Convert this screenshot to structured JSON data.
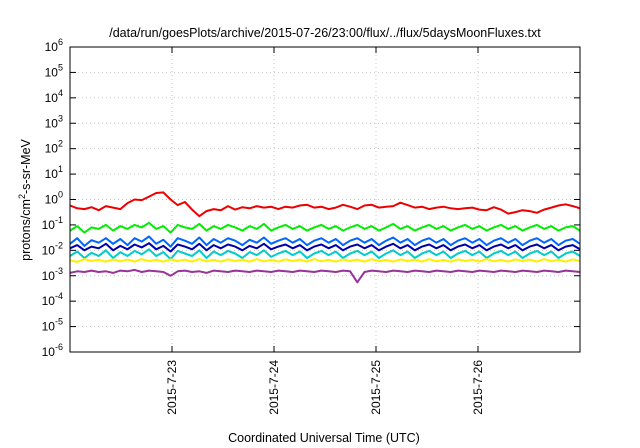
{
  "chart_data": {
    "type": "line",
    "title": "/data/run/goesPlots/archive/2015-07-26/23:00/flux/../flux/5daysMoonFluxes.txt",
    "xlabel": "Coordinated Universal Time (UTC)",
    "ylabel": "protons/cm²-s-sr-MeV",
    "ylabel_parts": {
      "before": "protons/cm",
      "sup": "2",
      "after": "-s-sr-MeV"
    },
    "y_scale": "log",
    "ylim": [
      1e-06,
      1000000.0
    ],
    "xlim": [
      "2015-07-22 00:00",
      "2015-07-27 00:00"
    ],
    "grid": true,
    "legend": "none",
    "y_ticks": [
      {
        "base": "10",
        "exp": "-6",
        "value": 1e-06
      },
      {
        "base": "10",
        "exp": "-5",
        "value": 1e-05
      },
      {
        "base": "10",
        "exp": "-4",
        "value": 0.0001
      },
      {
        "base": "10",
        "exp": "-3",
        "value": 0.001
      },
      {
        "base": "10",
        "exp": "-2",
        "value": 0.01
      },
      {
        "base": "10",
        "exp": "-1",
        "value": 0.1
      },
      {
        "base": "10",
        "exp": "0",
        "value": 1.0
      },
      {
        "base": "10",
        "exp": "1",
        "value": 10.0
      },
      {
        "base": "10",
        "exp": "2",
        "value": 100.0
      },
      {
        "base": "10",
        "exp": "3",
        "value": 1000.0
      },
      {
        "base": "10",
        "exp": "4",
        "value": 10000.0
      },
      {
        "base": "10",
        "exp": "5",
        "value": 100000.0
      },
      {
        "base": "10",
        "exp": "6",
        "value": 1000000.0
      }
    ],
    "x_ticks": [
      {
        "label": "2015-7-23",
        "value": "2015-07-23 00:00"
      },
      {
        "label": "2015-7-24",
        "value": "2015-07-24 00:00"
      },
      {
        "label": "2015-7-25",
        "value": "2015-07-25 00:00"
      },
      {
        "label": "2015-7-26",
        "value": "2015-07-26 00:00"
      }
    ],
    "series_sampling": "12 samples per day starting 2015-07-22 00:00",
    "series": [
      {
        "color": "#ee0000",
        "values": [
          0.58,
          0.45,
          0.42,
          0.5,
          0.38,
          0.55,
          0.48,
          0.42,
          0.72,
          1.0,
          0.95,
          1.3,
          1.8,
          1.9,
          1.0,
          0.6,
          0.8,
          0.4,
          0.22,
          0.35,
          0.42,
          0.38,
          0.55,
          0.4,
          0.5,
          0.45,
          0.55,
          0.48,
          0.52,
          0.42,
          0.52,
          0.48,
          0.58,
          0.62,
          0.48,
          0.52,
          0.42,
          0.48,
          0.62,
          0.52,
          0.42,
          0.58,
          0.62,
          0.48,
          0.52,
          0.55,
          0.75,
          0.6,
          0.48,
          0.52,
          0.42,
          0.48,
          0.52,
          0.45,
          0.42,
          0.45,
          0.48,
          0.4,
          0.38,
          0.5,
          0.4,
          0.28,
          0.32,
          0.38,
          0.35,
          0.3,
          0.4,
          0.48,
          0.58,
          0.65,
          0.55,
          0.45
        ]
      },
      {
        "color": "#00ee00",
        "values": [
          0.06,
          0.09,
          0.05,
          0.08,
          0.07,
          0.1,
          0.06,
          0.09,
          0.07,
          0.1,
          0.08,
          0.12,
          0.07,
          0.09,
          0.05,
          0.1,
          0.08,
          0.07,
          0.11,
          0.06,
          0.09,
          0.07,
          0.1,
          0.08,
          0.06,
          0.09,
          0.07,
          0.11,
          0.06,
          0.08,
          0.1,
          0.07,
          0.09,
          0.06,
          0.08,
          0.1,
          0.07,
          0.09,
          0.06,
          0.08,
          0.1,
          0.07,
          0.09,
          0.06,
          0.08,
          0.11,
          0.07,
          0.09,
          0.06,
          0.08,
          0.1,
          0.07,
          0.09,
          0.06,
          0.08,
          0.1,
          0.07,
          0.09,
          0.06,
          0.08,
          0.1,
          0.07,
          0.09,
          0.06,
          0.08,
          0.1,
          0.07,
          0.09,
          0.06,
          0.08,
          0.09,
          0.06
        ]
      },
      {
        "color": "#0066ff",
        "values": [
          0.018,
          0.03,
          0.015,
          0.025,
          0.02,
          0.03,
          0.018,
          0.028,
          0.016,
          0.03,
          0.022,
          0.035,
          0.018,
          0.026,
          0.014,
          0.03,
          0.024,
          0.018,
          0.032,
          0.016,
          0.028,
          0.02,
          0.03,
          0.024,
          0.016,
          0.026,
          0.02,
          0.032,
          0.018,
          0.024,
          0.03,
          0.02,
          0.028,
          0.016,
          0.024,
          0.03,
          0.02,
          0.028,
          0.016,
          0.024,
          0.03,
          0.02,
          0.028,
          0.016,
          0.024,
          0.032,
          0.02,
          0.028,
          0.016,
          0.024,
          0.03,
          0.02,
          0.028,
          0.016,
          0.024,
          0.03,
          0.02,
          0.028,
          0.016,
          0.024,
          0.03,
          0.02,
          0.028,
          0.016,
          0.024,
          0.03,
          0.02,
          0.028,
          0.016,
          0.024,
          0.028,
          0.018
        ]
      },
      {
        "color": "#0000aa",
        "values": [
          0.012,
          0.016,
          0.01,
          0.014,
          0.012,
          0.018,
          0.01,
          0.015,
          0.011,
          0.017,
          0.013,
          0.019,
          0.011,
          0.015,
          0.009,
          0.017,
          0.014,
          0.011,
          0.018,
          0.01,
          0.016,
          0.012,
          0.017,
          0.014,
          0.01,
          0.015,
          0.012,
          0.018,
          0.011,
          0.014,
          0.017,
          0.012,
          0.016,
          0.01,
          0.014,
          0.017,
          0.012,
          0.016,
          0.01,
          0.014,
          0.017,
          0.012,
          0.016,
          0.01,
          0.014,
          0.018,
          0.012,
          0.016,
          0.01,
          0.014,
          0.017,
          0.012,
          0.016,
          0.01,
          0.014,
          0.017,
          0.012,
          0.016,
          0.01,
          0.014,
          0.017,
          0.012,
          0.016,
          0.01,
          0.014,
          0.017,
          0.012,
          0.016,
          0.01,
          0.014,
          0.016,
          0.011
        ]
      },
      {
        "color": "#00cccc",
        "values": [
          0.006,
          0.009,
          0.005,
          0.008,
          0.006,
          0.01,
          0.005,
          0.0085,
          0.006,
          0.0095,
          0.007,
          0.011,
          0.006,
          0.0085,
          0.0045,
          0.0095,
          0.0075,
          0.006,
          0.01,
          0.005,
          0.009,
          0.0065,
          0.0095,
          0.0075,
          0.005,
          0.0085,
          0.0065,
          0.01,
          0.0055,
          0.0075,
          0.0095,
          0.0065,
          0.009,
          0.005,
          0.0075,
          0.0095,
          0.0065,
          0.009,
          0.005,
          0.0075,
          0.0095,
          0.0065,
          0.009,
          0.005,
          0.0075,
          0.01,
          0.0065,
          0.009,
          0.005,
          0.0075,
          0.0095,
          0.0065,
          0.009,
          0.005,
          0.0075,
          0.0095,
          0.0065,
          0.009,
          0.005,
          0.0075,
          0.0095,
          0.0065,
          0.009,
          0.005,
          0.0075,
          0.0095,
          0.0065,
          0.009,
          0.005,
          0.0075,
          0.009,
          0.006
        ]
      },
      {
        "color": "#ffee00",
        "values": [
          0.004,
          0.0035,
          0.0045,
          0.0038,
          0.0042,
          0.0036,
          0.0044,
          0.0037,
          0.0043,
          0.0036,
          0.0045,
          0.0038,
          0.0042,
          0.0036,
          0.0044,
          0.0038,
          0.0043,
          0.0036,
          0.0045,
          0.0037,
          0.0042,
          0.0036,
          0.0044,
          0.0038,
          0.0043,
          0.0036,
          0.0045,
          0.0037,
          0.0042,
          0.0036,
          0.0044,
          0.0038,
          0.0043,
          0.0036,
          0.0045,
          0.0037,
          0.0042,
          0.0036,
          0.0044,
          0.0038,
          0.0043,
          0.0036,
          0.0045,
          0.0037,
          0.0042,
          0.0036,
          0.0044,
          0.0038,
          0.0043,
          0.0036,
          0.0045,
          0.0037,
          0.0042,
          0.0036,
          0.0044,
          0.0038,
          0.0043,
          0.0036,
          0.0045,
          0.0037,
          0.0042,
          0.0036,
          0.0044,
          0.0038,
          0.0043,
          0.0036,
          0.0045,
          0.0037,
          0.0042,
          0.0036,
          0.0044,
          0.0038
        ]
      },
      {
        "color": "#993399",
        "values": [
          0.0013,
          0.0015,
          0.0014,
          0.0016,
          0.0014,
          0.0015,
          0.0013,
          0.0016,
          0.0015,
          0.0017,
          0.0014,
          0.0016,
          0.0015,
          0.0014,
          0.001,
          0.0015,
          0.0016,
          0.0014,
          0.0015,
          0.0013,
          0.0016,
          0.0015,
          0.0014,
          0.0016,
          0.0015,
          0.0014,
          0.0016,
          0.0015,
          0.0014,
          0.0016,
          0.0015,
          0.0014,
          0.0016,
          0.0015,
          0.0014,
          0.0016,
          0.0015,
          0.0014,
          0.0016,
          0.0015,
          0.00055,
          0.0014,
          0.0016,
          0.0015,
          0.0014,
          0.0016,
          0.0015,
          0.0014,
          0.0016,
          0.0015,
          0.0014,
          0.0016,
          0.0015,
          0.0014,
          0.0016,
          0.0015,
          0.0014,
          0.0016,
          0.0015,
          0.0014,
          0.0016,
          0.0015,
          0.0014,
          0.0016,
          0.0015,
          0.0014,
          0.0016,
          0.0015,
          0.0014,
          0.0016,
          0.0015,
          0.0014
        ]
      }
    ]
  }
}
